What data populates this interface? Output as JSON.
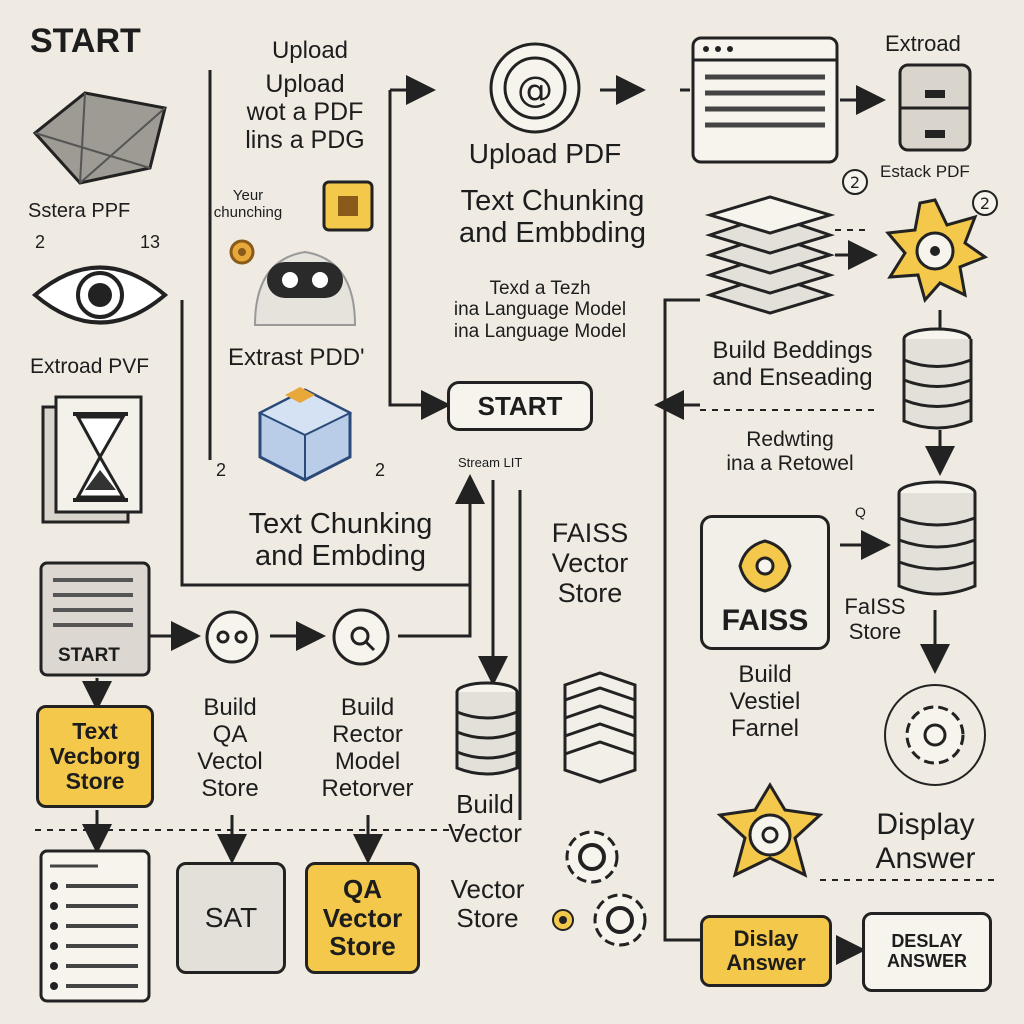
{
  "labels": {
    "start_title": "START",
    "upload_1": "Upload",
    "upload_2": "Upload\nwot a PDF\nlins a PDG",
    "stored_pdf": "Sstera PPF",
    "num_2_left": "2",
    "num_13_left": "13",
    "yeur_chunking": "Yeur\nchunching",
    "extract_pvf": "Extroad PVF",
    "extrast_pdd": "Extrast PDD'",
    "num_2_mid": "2",
    "num_2_center": "2",
    "text_chunking_left": "Text Chunking\nand Embding",
    "upload_pdf": "Upload PDF",
    "text_chunking_top": "Text Chunking\nand Embbding",
    "texd_tezh": "Texd a Tezh\nina Language Model\nina Language Model",
    "start_box": "START",
    "stream_lit": "Stream LIT",
    "faiss_vector": "FAISS\nVector\nStore",
    "start_doc": "START",
    "text_vector_box": "Text\nVecborg\nStore",
    "build_qa": "Build\nQA\nVectol\nStore",
    "build_rector": "Build\nRector\nModel\nRetorver",
    "build_vector": "Build\nVector",
    "vector_store": "Vector\nStore",
    "sat_box": "SAT",
    "qa_vector_box": "QA\nVector\nStore",
    "extroad_tr": "Extroad",
    "estack_pdf": "Estack PDF",
    "num_2_right_a": "2",
    "num_2_right_b": "2",
    "build_beddings": "Build Beddings\nand Enseading",
    "redwting": "Redwting\nina a Retowel",
    "faiss_box": "FAISS",
    "faiss_store": "FaISS\nStore",
    "build_vestiel": "Build\nVestiel\nFarnel",
    "display_answer_right": "Display\nAnswer",
    "display_answer_box": "Dislay\nAnswer",
    "display_answer_box2": "DESLAY\nANSWER",
    "at_symbol": "@",
    "num_q": "Q"
  },
  "colors": {
    "background": "#efebe3",
    "accent_yellow": "#f3c84b",
    "ink": "#222222"
  },
  "icons": [
    "pillow-icon",
    "eye-icon",
    "hourglass-book-icon",
    "robot-icon",
    "cube-icon",
    "at-circle-icon",
    "browser-window-icon",
    "drawer-icon",
    "paper-stack-icon",
    "sun-gear-icon",
    "database-icon",
    "faiss-logo-icon",
    "gear-icon",
    "document-icon"
  ]
}
